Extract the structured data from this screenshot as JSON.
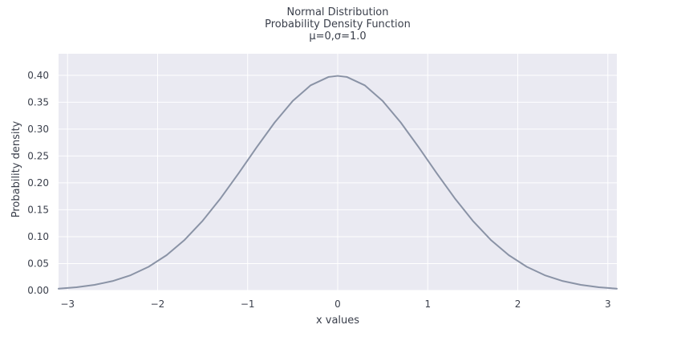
{
  "chart_data": {
    "type": "line",
    "title_lines": [
      "Normal Distribution",
      "Probability Density Function",
      "μ=0,σ=1.0"
    ],
    "xlabel": "x values",
    "ylabel": "Probability density",
    "xlim": [
      -3.1,
      3.1
    ],
    "ylim": [
      0,
      0.44
    ],
    "x_ticks": [
      -3,
      -2,
      -1,
      0,
      1,
      2,
      3
    ],
    "x_tick_labels": [
      "−3",
      "−2",
      "−1",
      "0",
      "1",
      "2",
      "3"
    ],
    "y_ticks": [
      0.0,
      0.05,
      0.1,
      0.15,
      0.2,
      0.25,
      0.3,
      0.35,
      0.4
    ],
    "y_tick_labels": [
      "0.00",
      "0.05",
      "0.10",
      "0.15",
      "0.20",
      "0.25",
      "0.30",
      "0.35",
      "0.40"
    ],
    "grid": true,
    "series": [
      {
        "x": [
          -3.1,
          -2.9,
          -2.7,
          -2.5,
          -2.3,
          -2.1,
          -1.9,
          -1.7,
          -1.5,
          -1.3,
          -1.1,
          -0.9,
          -0.7,
          -0.5,
          -0.3,
          -0.1,
          0.0,
          0.1,
          0.3,
          0.5,
          0.7,
          0.9,
          1.1,
          1.3,
          1.5,
          1.7,
          1.9,
          2.1,
          2.3,
          2.5,
          2.7,
          2.9,
          3.1
        ],
        "y": [
          0.0033,
          0.006,
          0.0104,
          0.0175,
          0.0283,
          0.044,
          0.0656,
          0.094,
          0.1295,
          0.1714,
          0.2179,
          0.2661,
          0.3123,
          0.3521,
          0.3814,
          0.397,
          0.3989,
          0.397,
          0.3814,
          0.3521,
          0.3123,
          0.2661,
          0.2179,
          0.1714,
          0.1295,
          0.094,
          0.0656,
          0.044,
          0.0283,
          0.0175,
          0.0104,
          0.006,
          0.0033
        ]
      }
    ],
    "colors": {
      "plot_background": "#eaeaf2",
      "grid": "#ffffff",
      "line": "#8a93a6",
      "text": "#3a3f4b"
    }
  }
}
